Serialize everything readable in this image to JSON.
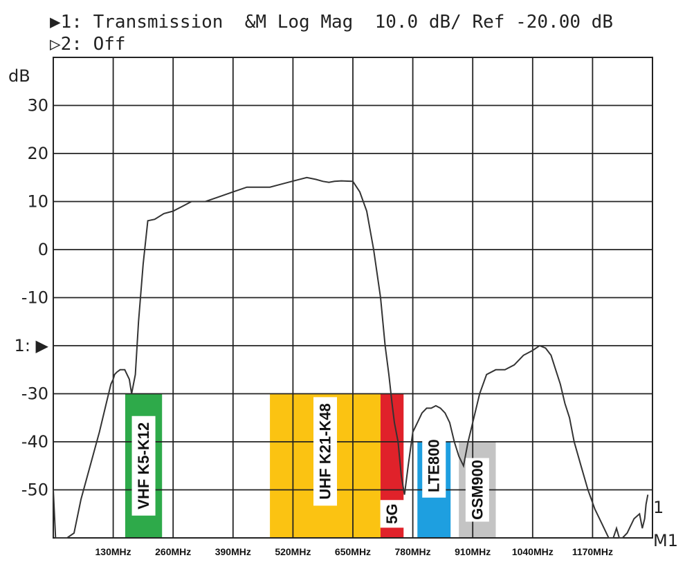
{
  "header": {
    "line1": "▶1: Transmission  &M Log Mag  10.0 dB/ Ref -20.00 dB",
    "line2": "▷2: Off"
  },
  "chart_data": {
    "type": "line",
    "title": "",
    "xlabel": "",
    "ylabel": "dB",
    "xlim": [
      0,
      1300
    ],
    "ylim": [
      -60,
      40
    ],
    "grid": true,
    "y_ticks": [
      {
        "value": 30,
        "label": "30"
      },
      {
        "value": 20,
        "label": "20"
      },
      {
        "value": 10,
        "label": "10"
      },
      {
        "value": 0,
        "label": "0"
      },
      {
        "value": -10,
        "label": "-10"
      },
      {
        "value": -20,
        "label": "1: ▶"
      },
      {
        "value": -30,
        "label": "-30"
      },
      {
        "value": -40,
        "label": "-40"
      },
      {
        "value": -50,
        "label": "-50"
      }
    ],
    "x_ticks": [
      {
        "value": 130,
        "label": "130MHz"
      },
      {
        "value": 260,
        "label": "260MHz"
      },
      {
        "value": 390,
        "label": "390MHz"
      },
      {
        "value": 520,
        "label": "520MHz"
      },
      {
        "value": 650,
        "label": "650MHz"
      },
      {
        "value": 780,
        "label": "780MHz"
      },
      {
        "value": 910,
        "label": "910MHz"
      },
      {
        "value": 1040,
        "label": "1040MHz"
      },
      {
        "value": 1170,
        "label": "1170MHz"
      }
    ],
    "bands": [
      {
        "label": "VHF K5-K12",
        "x0": 156,
        "x1": 236,
        "top": -30,
        "color": "#2eaa4a",
        "label_y": -45
      },
      {
        "label": "UHF K21-K48",
        "x0": 470,
        "x1": 710,
        "top": -30,
        "color": "#fbc312",
        "label_y": -42
      },
      {
        "label": "5G",
        "x0": 710,
        "x1": 760,
        "top": -30,
        "color": "#e0222a",
        "label_y": -55
      },
      {
        "label": "LTE800",
        "x0": 790,
        "x1": 862,
        "top": -40,
        "color": "#1e9fe0",
        "label_y": -45
      },
      {
        "label": "GSM900",
        "x0": 880,
        "x1": 960,
        "top": -40,
        "color": "#c4c4c4",
        "label_y": -50
      }
    ],
    "series": [
      {
        "x": [
          0,
          5,
          10,
          30,
          45,
          60,
          80,
          100,
          115,
          125,
          130,
          133,
          138,
          145,
          155,
          165,
          170,
          178,
          185,
          195,
          205,
          220,
          240,
          260,
          280,
          300,
          330,
          360,
          390,
          420,
          450,
          470,
          490,
          510,
          530,
          550,
          570,
          585,
          598,
          610,
          625,
          650,
          665,
          680,
          695,
          710,
          720,
          728,
          735,
          740,
          748,
          755,
          762,
          770,
          780,
          790,
          800,
          810,
          820,
          830,
          840,
          850,
          860,
          870,
          880,
          890,
          900,
          910,
          925,
          940,
          960,
          980,
          1000,
          1020,
          1040,
          1055,
          1068,
          1080,
          1090,
          1100,
          1110,
          1120,
          1130,
          1145,
          1160,
          1175,
          1190,
          1205,
          1215,
          1222,
          1228,
          1235,
          1245,
          1260,
          1272,
          1278,
          1283,
          1286,
          1290
        ],
        "y": [
          -50,
          -60,
          -60,
          -60,
          -59,
          -52,
          -45,
          -38,
          -32,
          -28,
          -27,
          -26,
          -25.5,
          -25,
          -25,
          -27,
          -30,
          -26,
          -15,
          -3,
          6,
          6.3,
          7.5,
          8,
          9,
          10,
          10,
          11,
          12,
          13,
          13,
          13,
          13.5,
          14,
          14.5,
          15,
          14.6,
          14.2,
          14,
          14.2,
          14.3,
          14.2,
          12,
          8,
          0,
          -10,
          -20,
          -26,
          -32,
          -36,
          -40,
          -47,
          -51,
          -45,
          -38,
          -36,
          -34,
          -33,
          -33,
          -32.5,
          -33,
          -34,
          -36,
          -40,
          -43,
          -45,
          -40,
          -36,
          -30,
          -26,
          -25,
          -25,
          -24,
          -22,
          -21,
          -20,
          -20.5,
          -22,
          -25,
          -28,
          -32,
          -35,
          -40,
          -45,
          -50,
          -54,
          -57,
          -60,
          -60,
          -58,
          -60,
          -60,
          -59,
          -56,
          -55,
          -58,
          -56,
          -53,
          -51
        ]
      }
    ]
  }
}
